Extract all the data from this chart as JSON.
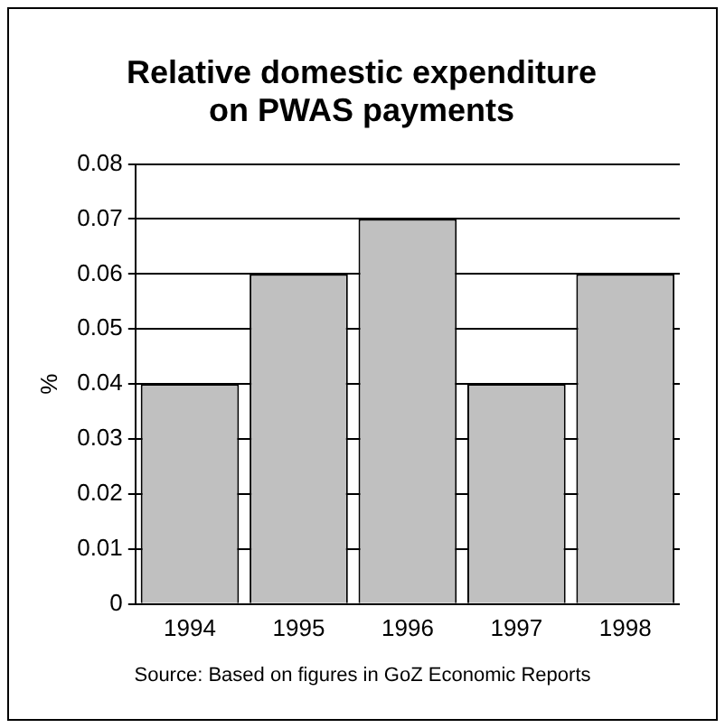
{
  "chart_data": {
    "type": "bar",
    "title": "Relative domestic expenditure on PWAS payments",
    "ylabel": "%",
    "categories": [
      "1994",
      "1995",
      "1996",
      "1997",
      "1998"
    ],
    "values": [
      0.04,
      0.06,
      0.07,
      0.04,
      0.06
    ],
    "color": "#c0c0c0",
    "ylim": [
      0,
      0.08
    ],
    "yticks": [
      0,
      0.01,
      0.02,
      0.03,
      0.04,
      0.05,
      0.06,
      0.07,
      0.08
    ],
    "grid": "y",
    "annotations": [
      "Source: Based on figures in GoZ Economic Reports"
    ]
  }
}
